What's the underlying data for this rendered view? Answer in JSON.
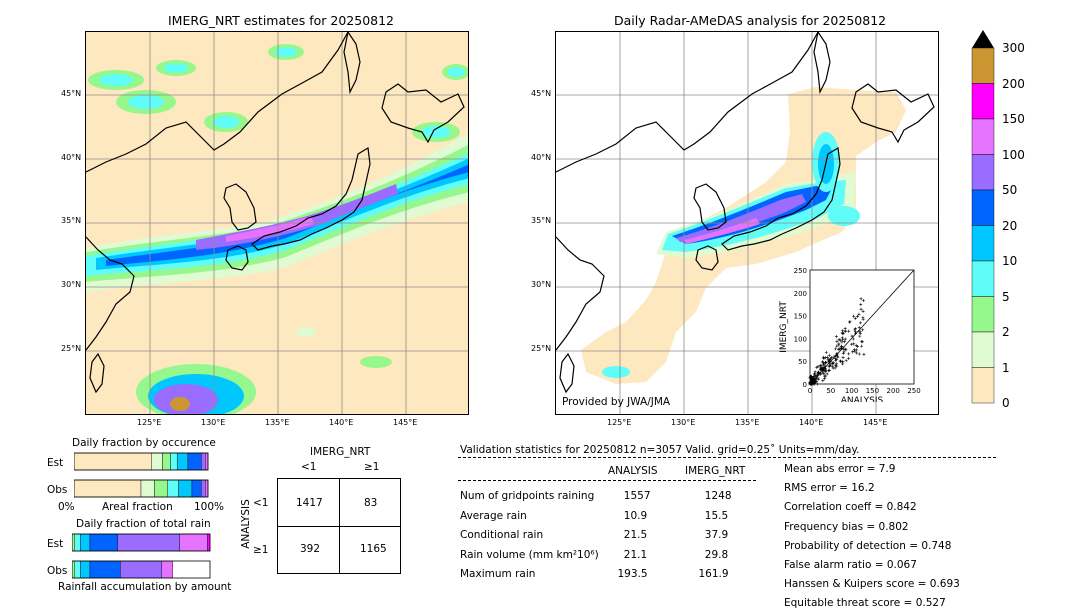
{
  "colors": {
    "land_bg": "#fde8bf",
    "levels": [
      "#fde8bf",
      "#e0fbd2",
      "#96f88c",
      "#5ffcf8",
      "#00c8ff",
      "#0064ff",
      "#9a6cff",
      "#e673ff",
      "#ff00ff",
      "#cc9632"
    ],
    "coast": "#000000",
    "grid": "#8c8c8c"
  },
  "map_left": {
    "title": "IMERG_NRT estimates for 20250812",
    "lat_labels": [
      "45°N",
      "40°N",
      "35°N",
      "30°N",
      "25°N"
    ],
    "lon_labels": [
      "125°E",
      "130°E",
      "135°E",
      "140°E",
      "145°E"
    ]
  },
  "map_right": {
    "title": "Daily Radar-AMeDAS analysis for 20250812",
    "lat_labels": [
      "45°N",
      "40°N",
      "35°N",
      "30°N",
      "25°N"
    ],
    "lon_labels": [
      "125°E",
      "130°E",
      "135°E",
      "140°E",
      "145°E"
    ],
    "credit": "Provided by JWA/JMA"
  },
  "colorbar": {
    "labels": [
      "0",
      "1",
      "2",
      "5",
      "10",
      "20",
      "50",
      "100",
      "150",
      "200",
      "300"
    ]
  },
  "chart_data": [
    {
      "type": "scatter",
      "title": "",
      "xlabel": "ANALYSIS",
      "ylabel": "IMERG_NRT",
      "xlim": [
        0,
        250
      ],
      "ylim": [
        0,
        250
      ],
      "xticks": [
        "0",
        "50",
        "100",
        "150",
        "200",
        "250"
      ],
      "yticks": [
        "0",
        "50",
        "100",
        "150",
        "200",
        "250"
      ],
      "marker": "+",
      "diagonal": true
    },
    {
      "type": "bar",
      "title": "Daily fraction by occurence",
      "rows": [
        "Est",
        "Obs"
      ],
      "xlabel": "Areal fraction",
      "x_left": "0%",
      "x_right": "100%",
      "stacked": true
    },
    {
      "type": "bar",
      "title": "Daily fraction of total rain",
      "rows": [
        "Est",
        "Obs"
      ],
      "xlabel": "Rainfall accumulation by amount",
      "stacked": true
    },
    {
      "type": "table",
      "title": "IMERG_NRT",
      "col_headers": [
        "<1",
        "≥1"
      ],
      "row_label": "ANALYSIS",
      "row_headers": [
        "<1",
        "≥1"
      ],
      "cells": [
        [
          1417,
          83
        ],
        [
          392,
          1165
        ]
      ]
    }
  ],
  "stats": {
    "header": "Validation statistics for 20250812  n=3057 Valid. grid=0.25˚ Units=mm/day.",
    "col_analysis": "ANALYSIS",
    "col_imerg": "IMERG_NRT",
    "rows": [
      {
        "label": "Num of gridpoints raining",
        "analysis": "1557",
        "imerg": "1248"
      },
      {
        "label": "Average rain",
        "analysis": "10.9",
        "imerg": "15.5"
      },
      {
        "label": "Conditional rain",
        "analysis": "21.5",
        "imerg": "37.9"
      },
      {
        "label": "Rain volume (mm km²10⁶)",
        "analysis": "21.1",
        "imerg": "29.8"
      },
      {
        "label": "Maximum rain",
        "analysis": "193.5",
        "imerg": "161.9"
      }
    ],
    "scores": [
      "Mean abs error =    7.9",
      "RMS error =   16.2",
      "Correlation coeff =  0.842",
      "Frequency bias =  0.802",
      "Probability of detection =  0.748",
      "False alarm ratio =  0.067",
      "Hanssen & Kuipers score =  0.693",
      "Equitable threat score =  0.527"
    ]
  }
}
